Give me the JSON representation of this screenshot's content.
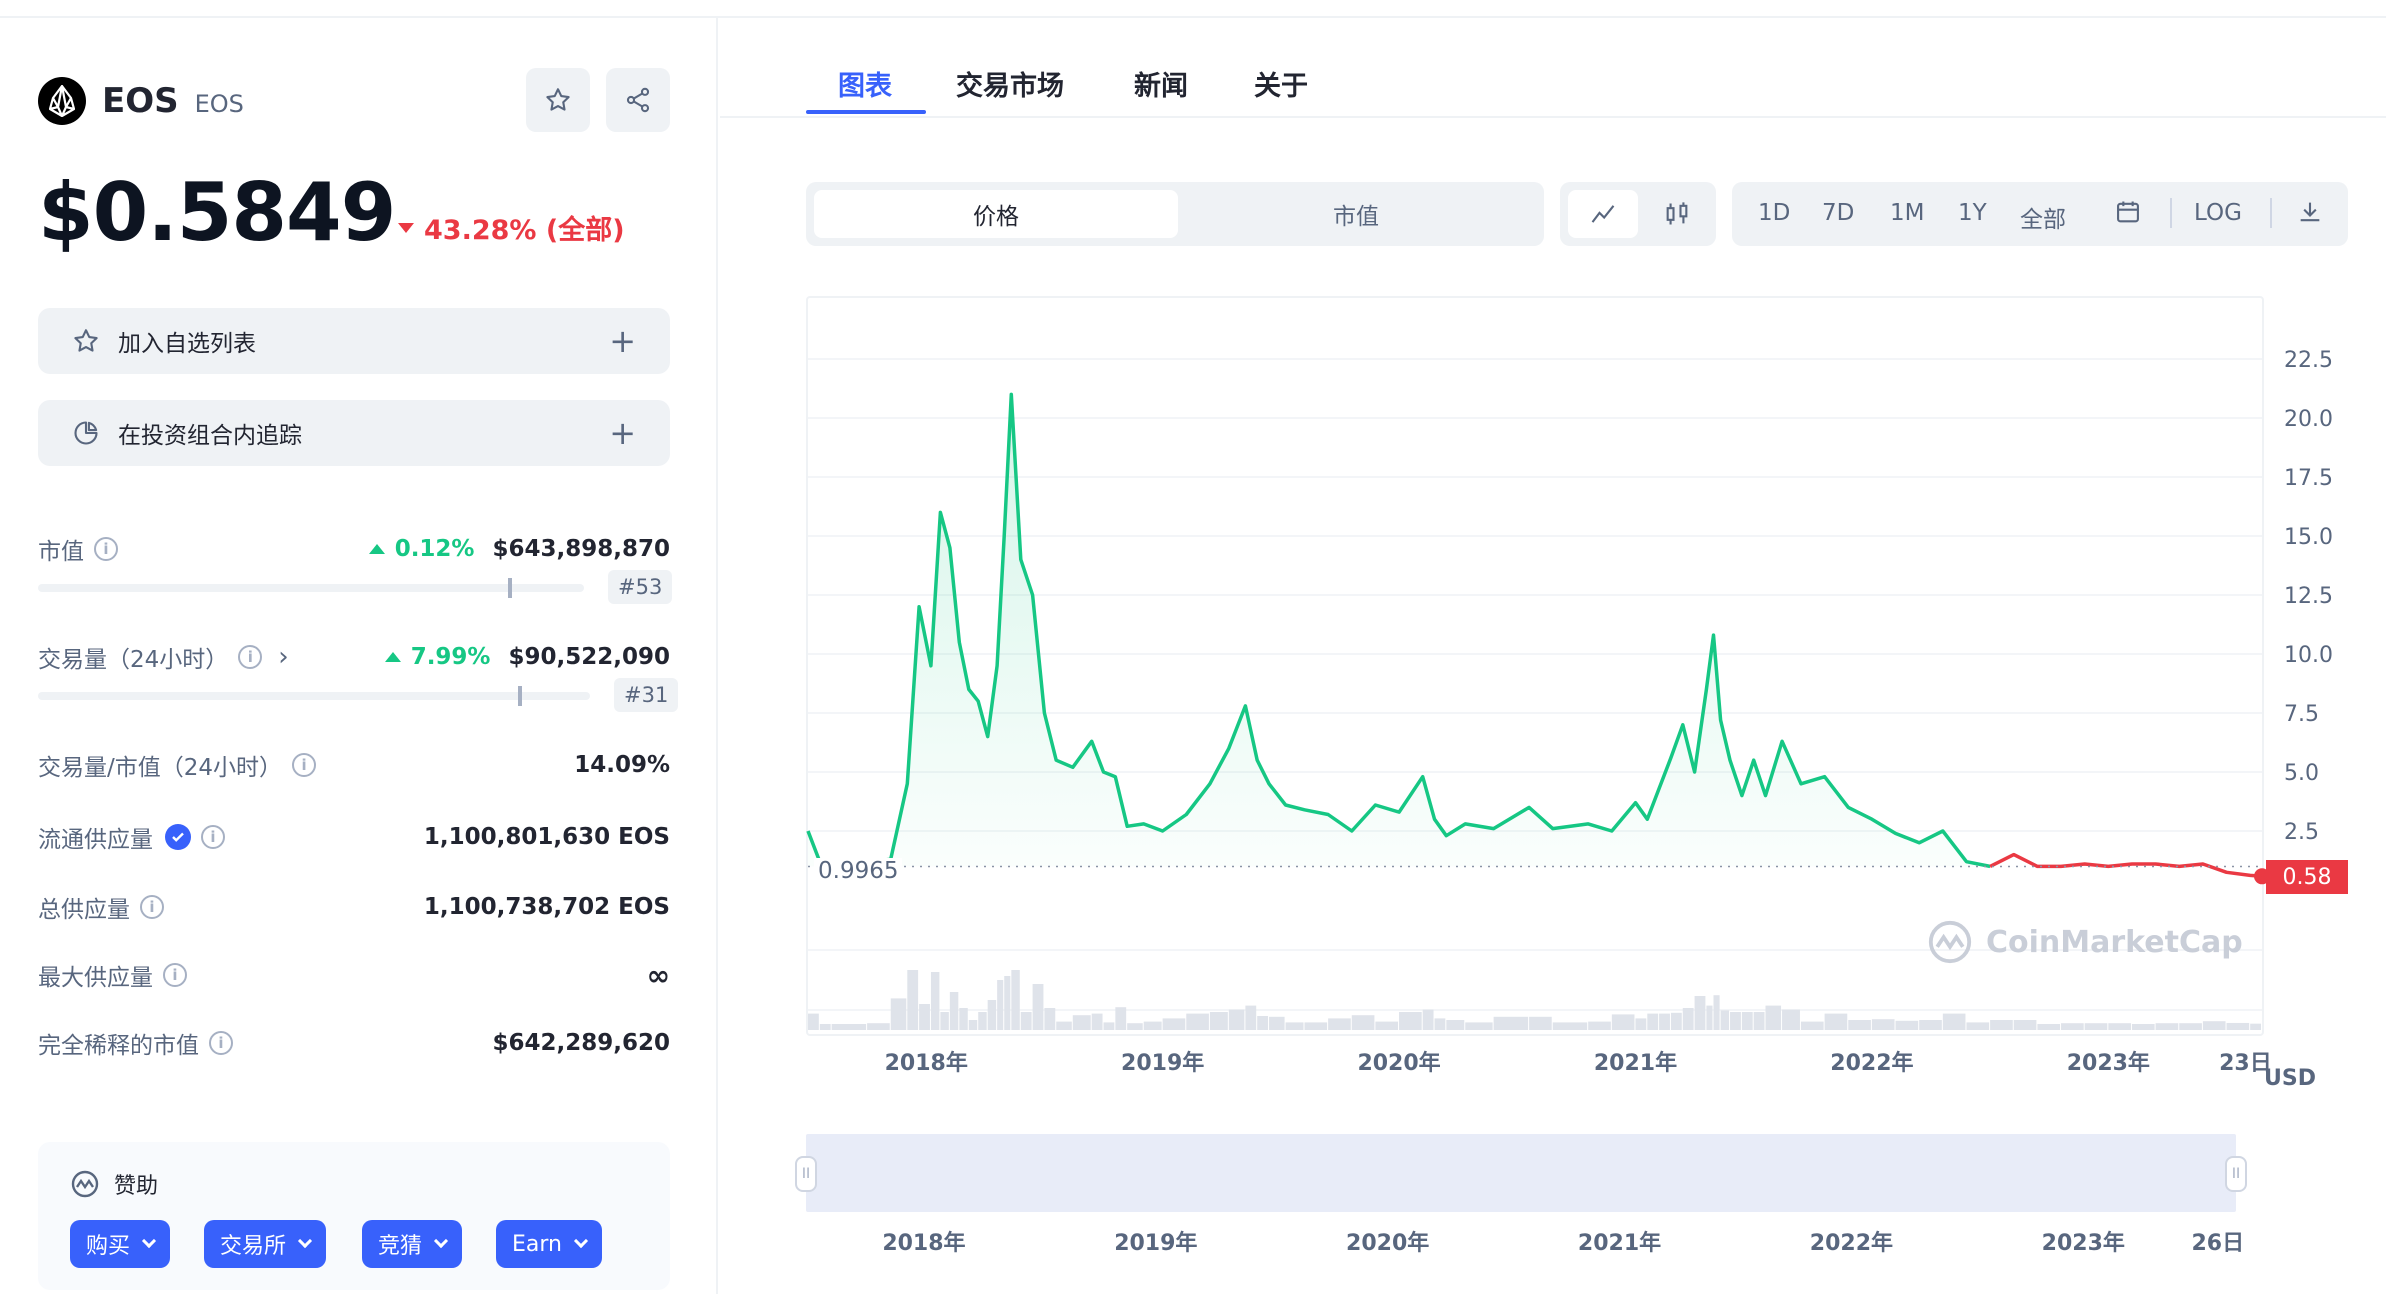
{
  "coin": {
    "name": "EOS",
    "symbol": "EOS",
    "price": "$0.5849",
    "change": "43.28% (全部)"
  },
  "actions": {
    "watchlist": "加入自选列表",
    "portfolio": "在投资组合内追踪"
  },
  "stats": {
    "market_cap": {
      "label": "市值",
      "change": "0.12%",
      "value": "$643,898,870",
      "rank": "#53",
      "bar_level": 0.86
    },
    "volume": {
      "label": "交易量（24小时）",
      "change": "7.99%",
      "value": "$90,522,090",
      "rank": "#31",
      "bar_level": 0.87
    },
    "vol_mcap": {
      "label": "交易量/市值（24小时）",
      "value": "14.09%"
    },
    "circulating": {
      "label": "流通供应量",
      "value": "1,100,801,630 EOS"
    },
    "total": {
      "label": "总供应量",
      "value": "1,100,738,702 EOS"
    },
    "max": {
      "label": "最大供应量",
      "value": "∞"
    },
    "fdv": {
      "label": "完全稀释的市值",
      "value": "$642,289,620"
    }
  },
  "sponsor": {
    "title": "赞助",
    "pills": [
      "购买",
      "交易所",
      "竞猜",
      "Earn"
    ]
  },
  "tabs": [
    "图表",
    "交易市场",
    "新闻",
    "关于"
  ],
  "chart_controls": {
    "metric": [
      "价格",
      "市值"
    ],
    "timeframes": [
      "1D",
      "7D",
      "1M",
      "1Y",
      "全部"
    ],
    "log": "LOG"
  },
  "chart_data": {
    "type": "area",
    "x_ticks": [
      "2018年",
      "2019年",
      "2020年",
      "2021年",
      "2022年",
      "2023年",
      "23日"
    ],
    "y_ticks": [
      "22.5",
      "20.0",
      "17.5",
      "15.0",
      "12.5",
      "10.0",
      "7.5",
      "5.0",
      "2.5"
    ],
    "ylim": [
      0,
      25
    ],
    "unit": "USD",
    "baseline_label": "0.9965",
    "current_label": "0.58",
    "watermark": "CoinMarketCap",
    "series": [
      {
        "x": [
          2017.5,
          2017.55,
          2017.6,
          2017.75,
          2017.85,
          2017.92,
          2017.97,
          2018.02,
          2018.06,
          2018.1,
          2018.14,
          2018.18,
          2018.22,
          2018.26,
          2018.3,
          2018.33,
          2018.36,
          2018.4,
          2018.45,
          2018.5,
          2018.55,
          2018.62,
          2018.7,
          2018.75,
          2018.8,
          2018.85,
          2018.92,
          2019.0,
          2019.1,
          2019.2,
          2019.28,
          2019.35,
          2019.4,
          2019.45,
          2019.52,
          2019.6,
          2019.7,
          2019.8,
          2019.9,
          2020.0,
          2020.1,
          2020.15,
          2020.2,
          2020.28,
          2020.4,
          2020.55,
          2020.65,
          2020.8,
          2020.9,
          2021.0,
          2021.05,
          2021.1,
          2021.15,
          2021.2,
          2021.25,
          2021.3,
          2021.33,
          2021.36,
          2021.4,
          2021.45,
          2021.5,
          2021.55,
          2021.62,
          2021.7,
          2021.8,
          2021.9,
          2022.0,
          2022.1,
          2022.2,
          2022.3,
          2022.4,
          2022.5,
          2022.6,
          2022.7,
          2022.8,
          2022.9,
          2023.0,
          2023.1,
          2023.2,
          2023.3,
          2023.4,
          2023.5,
          2023.6,
          2023.65
        ],
        "values": [
          2.5,
          1.2,
          1.2,
          1.2,
          1.3,
          4.5,
          12.0,
          9.5,
          16.0,
          14.5,
          10.5,
          8.5,
          8.0,
          6.5,
          9.5,
          15.0,
          21.0,
          14.0,
          12.5,
          7.5,
          5.5,
          5.2,
          6.3,
          5.0,
          4.8,
          2.7,
          2.8,
          2.5,
          3.2,
          4.5,
          6.0,
          7.8,
          5.5,
          4.5,
          3.6,
          3.4,
          3.2,
          2.5,
          3.6,
          3.3,
          4.8,
          3.0,
          2.3,
          2.8,
          2.6,
          3.5,
          2.6,
          2.8,
          2.5,
          3.7,
          3.0,
          4.3,
          5.6,
          7.0,
          5.0,
          8.5,
          10.8,
          7.2,
          5.5,
          4.0,
          5.5,
          4.0,
          6.3,
          4.5,
          4.8,
          3.5,
          3.0,
          2.4,
          2.0,
          2.5,
          1.2,
          1.0,
          1.5,
          1.0,
          1.0,
          1.1,
          1.0,
          1.1,
          1.1,
          1.0,
          1.1,
          0.75,
          0.62,
          0.58
        ]
      }
    ],
    "mini_ticks": [
      "2018年",
      "2019年",
      "2020年",
      "2021年",
      "2022年",
      "2023年",
      "26日"
    ],
    "colors": {
      "up": "#16c784",
      "down": "#ea3943",
      "accent": "#3861fb"
    }
  }
}
